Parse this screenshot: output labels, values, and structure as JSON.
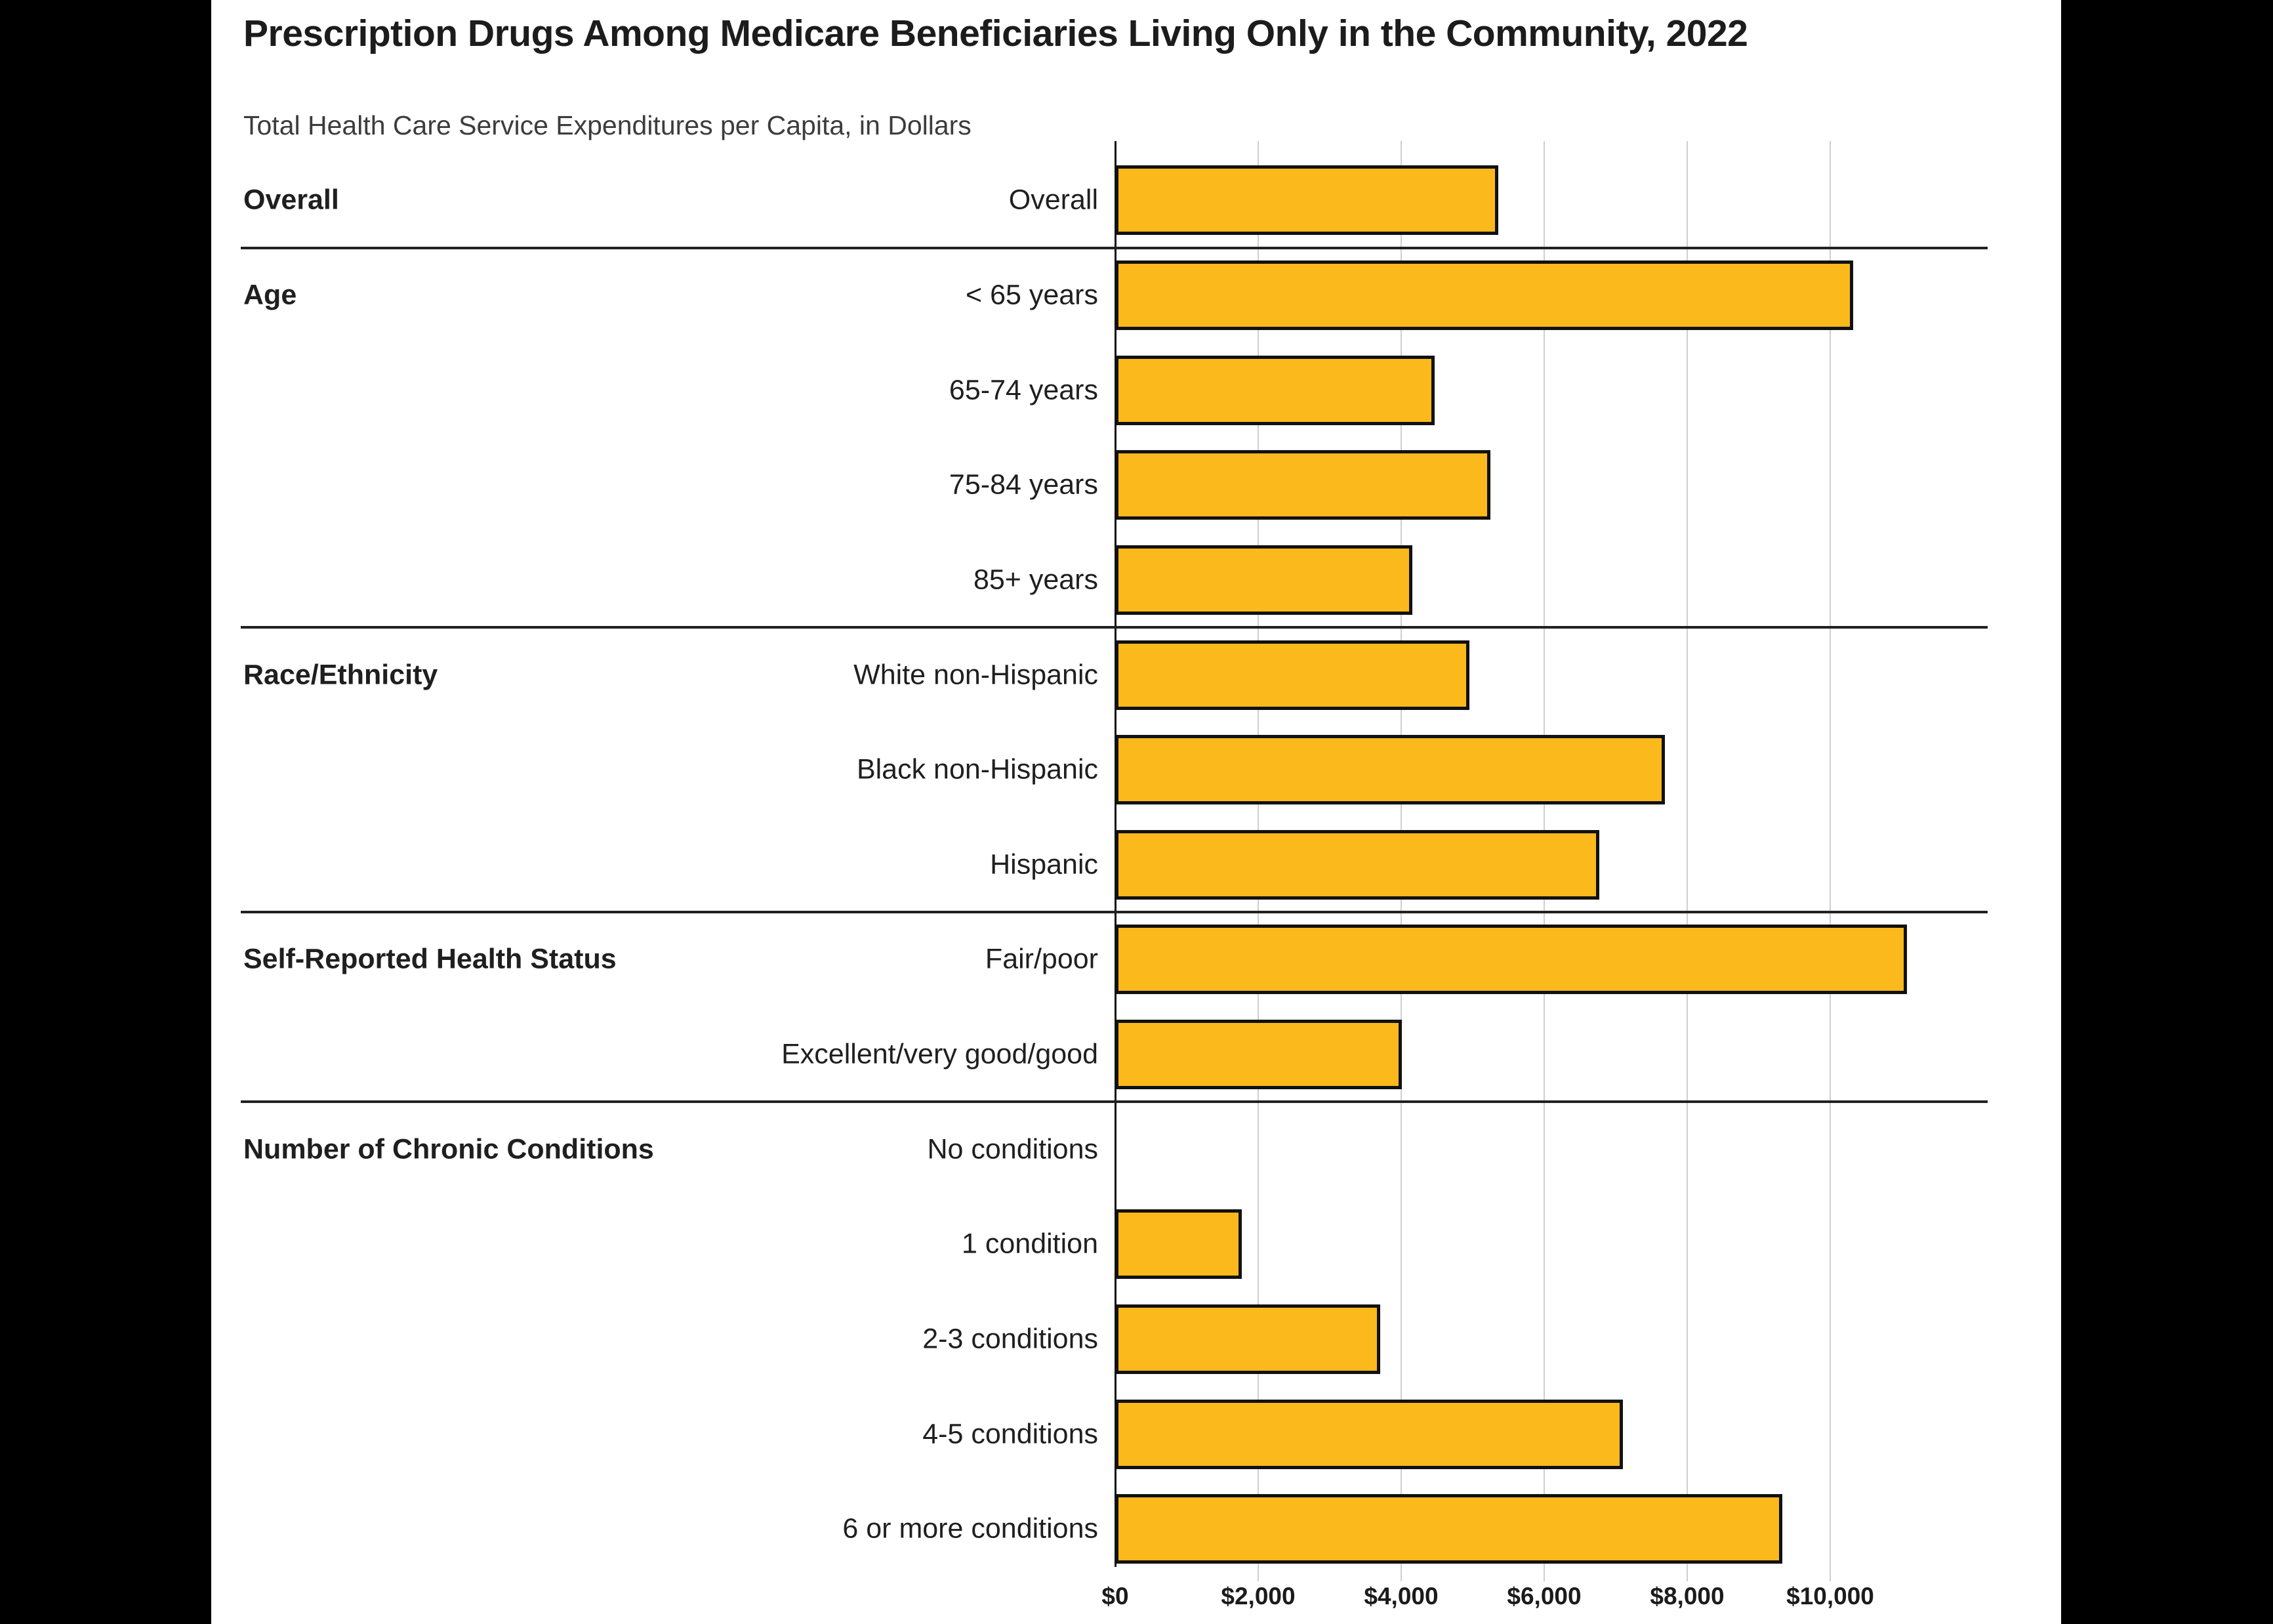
{
  "header": {
    "title": "Prescription Drugs Among Medicare Beneficiaries Living Only in the Community, 2022",
    "subtitle": "Total Health Care Service Expenditures per Capita, in Dollars"
  },
  "chart_data": {
    "type": "bar",
    "orientation": "horizontal",
    "title": "Prescription Drugs Among Medicare Beneficiaries Living Only in the Community, 2022",
    "subtitle": "Total Health Care Service Expenditures per Capita, in Dollars",
    "unit": "dollars per capita",
    "xlim": [
      0,
      12200
    ],
    "grid": true,
    "x_tick_values": [
      0,
      2000,
      4000,
      6000,
      8000,
      10000
    ],
    "xlabel_ticks": [
      "$0",
      "$2,000",
      "$4,000",
      "$6,000",
      "$8,000",
      "$10,000"
    ],
    "groups": [
      {
        "label": "Overall",
        "rows": [
          {
            "label": "Overall",
            "value": 5360
          }
        ]
      },
      {
        "label": "Age",
        "rows": [
          {
            "label": "< 65 years",
            "value": 10320
          },
          {
            "label": "65-74 years",
            "value": 4470
          },
          {
            "label": "75-84 years",
            "value": 5250
          },
          {
            "label": "85+ years",
            "value": 4160
          }
        ]
      },
      {
        "label": "Race/Ethnicity",
        "rows": [
          {
            "label": "White non-Hispanic",
            "value": 4950
          },
          {
            "label": "Black non-Hispanic",
            "value": 7690
          },
          {
            "label": "Hispanic",
            "value": 6770
          }
        ]
      },
      {
        "label": "Self-Reported Health Status",
        "rows": [
          {
            "label": "Fair/poor",
            "value": 11070
          },
          {
            "label": "Excellent/very good/good",
            "value": 4010
          }
        ]
      },
      {
        "label": "Number of Chronic Conditions",
        "rows": [
          {
            "label": "No conditions",
            "value": 0
          },
          {
            "label": "1 condition",
            "value": 1770
          },
          {
            "label": "2-3 conditions",
            "value": 3710
          },
          {
            "label": "4-5 conditions",
            "value": 7100
          },
          {
            "label": "6 or more conditions",
            "value": 9330
          }
        ]
      }
    ],
    "colors": {
      "bar_fill": "#FCB91C",
      "bar_border": "#111111",
      "gridline": "#CFCFCF",
      "axis_line": "#111111",
      "separator": "#222222",
      "side_band": "#000000",
      "title": "#1C1C1C",
      "subtitle": "#3C3C3C",
      "label": "#1F1F1F"
    }
  }
}
